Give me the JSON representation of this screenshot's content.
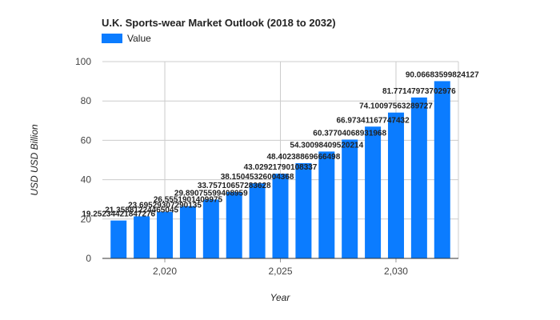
{
  "chart_data": {
    "type": "bar",
    "title": "U.K.  Sports-wear Market Outlook (2018 to 2032)",
    "xlabel": "Year",
    "ylabel": "USD USD Billion",
    "legend": {
      "position": "top-left",
      "entries": [
        "Value"
      ]
    },
    "grid": true,
    "ylim": [
      0,
      100
    ],
    "yticks": [
      "0",
      "20",
      "40",
      "60",
      "80",
      "100"
    ],
    "xlim": [
      2017.3,
      2032.7
    ],
    "xticks": [
      {
        "value": 2020,
        "label": "2,020"
      },
      {
        "value": 2025,
        "label": "2,025"
      },
      {
        "value": 2030,
        "label": "2,030"
      }
    ],
    "color": "#0b7cff",
    "series": [
      {
        "name": "Value",
        "x": [
          2018,
          2019,
          2020,
          2021,
          2022,
          2023,
          2024,
          2025,
          2026,
          2027,
          2028,
          2029,
          2030,
          2031,
          2032
        ],
        "values": [
          19.25,
          21.36,
          23.7,
          26.56,
          29.89,
          33.76,
          38.15,
          43.03,
          48.4,
          54.3,
          60.38,
          66.97,
          74.1,
          81.77,
          90.07
        ],
        "labels": [
          "19.25234421847276",
          "21.35881224465045",
          "23.69529307290135",
          "26.5551901409975",
          "29.89075599408959",
          "33.75710657283628",
          "38.15045326004368",
          "43.02921790108337",
          "48.40238869666498",
          "54.30098409520214",
          "60.37704068931968",
          "66.97341167747432",
          "74.10097563289727",
          "81.77147973702976",
          "90.06683599824127"
        ]
      }
    ]
  }
}
